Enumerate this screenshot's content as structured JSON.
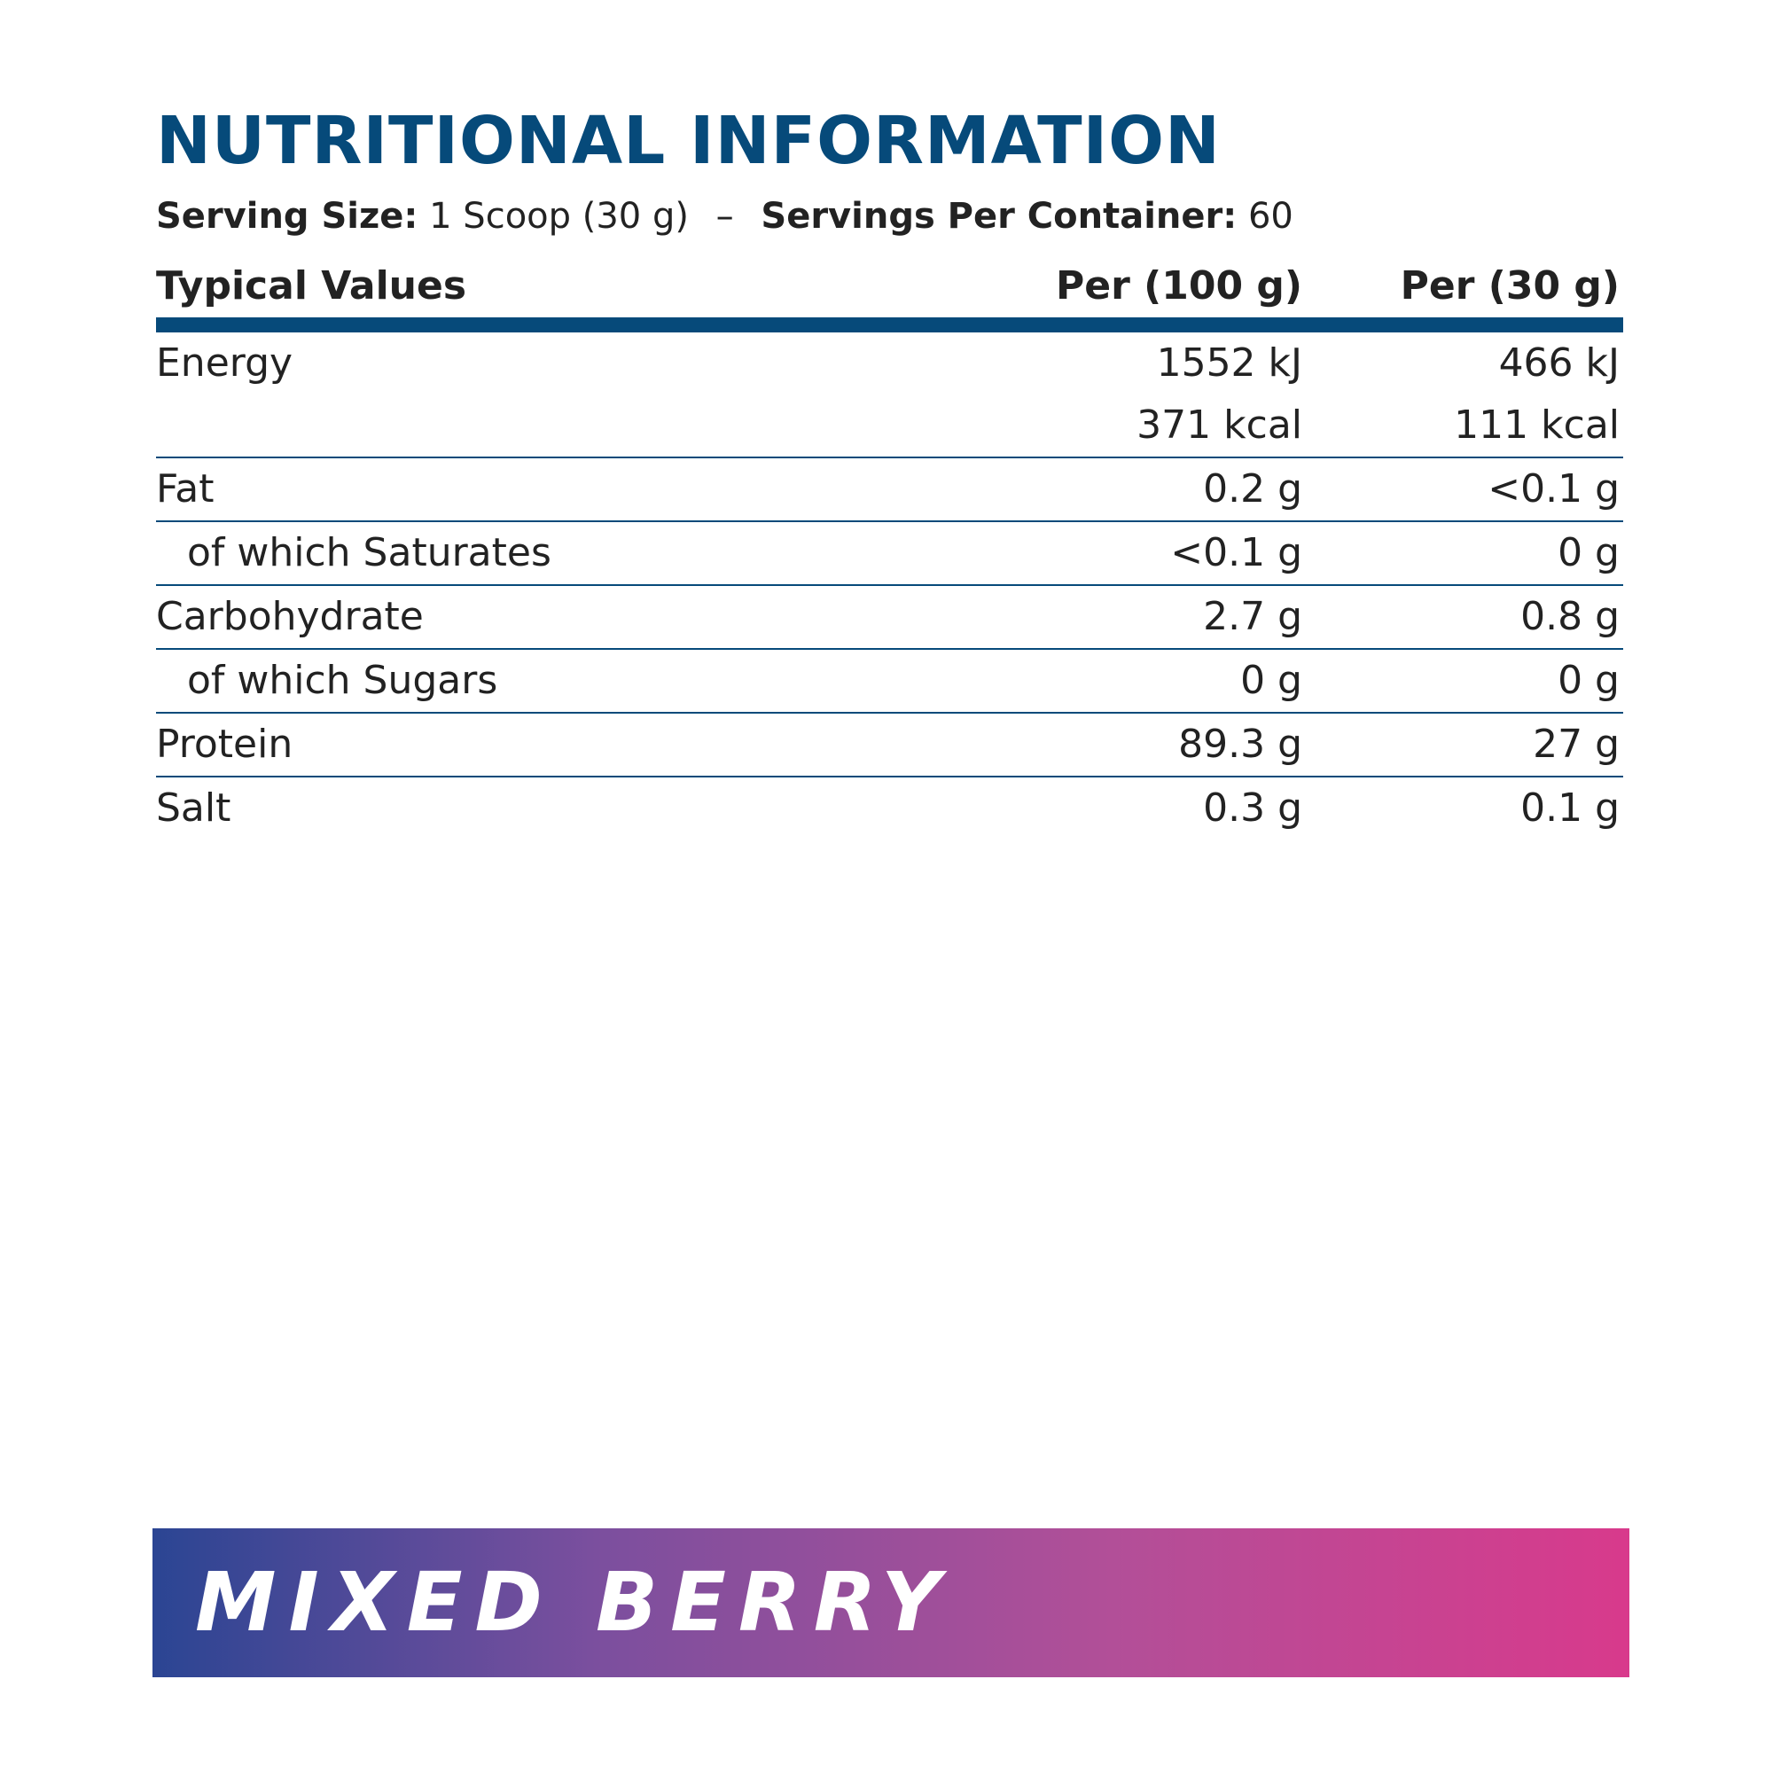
{
  "title": "NUTRITIONAL INFORMATION",
  "serving": {
    "size_label": "Serving Size:",
    "size_value": "1 Scoop (30 g)",
    "separator": "–",
    "per_container_label": "Servings Per Container:",
    "per_container_value": "60"
  },
  "table": {
    "headers": {
      "label": "Typical Values",
      "per100": "Per (100 g)",
      "per30": "Per (30 g)"
    },
    "rows": [
      {
        "label": "Energy",
        "per100": "1552 kJ",
        "per30": "466 kJ"
      },
      {
        "label": "",
        "per100": "371 kcal",
        "per30": "111 kcal"
      },
      {
        "label": "Fat",
        "per100": "0.2 g",
        "per30": "<0.1 g"
      },
      {
        "label": "of which Saturates",
        "per100": "<0.1 g",
        "per30": "0 g"
      },
      {
        "label": "Carbohydrate",
        "per100": "2.7 g",
        "per30": "0.8 g"
      },
      {
        "label": "of which Sugars",
        "per100": "0 g",
        "per30": "0 g"
      },
      {
        "label": "Protein",
        "per100": "89.3 g",
        "per30": "27 g"
      },
      {
        "label": "Salt",
        "per100": "0.3 g",
        "per30": "0.1 g"
      }
    ]
  },
  "banner": {
    "flavour": "MIXED BERRY"
  },
  "colors": {
    "accent": "#064a7a",
    "banner_start": "#2b4593",
    "banner_end": "#d83a8c"
  }
}
